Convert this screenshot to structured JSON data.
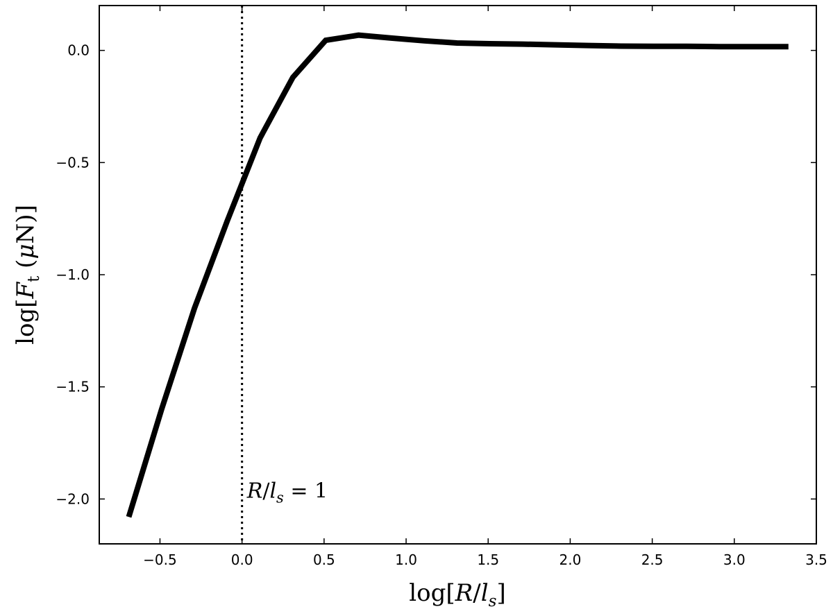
{
  "chart_data": {
    "type": "line",
    "xlabel": {
      "pre": "log[",
      "var": "R",
      "mid": "/",
      "var2": "l",
      "sub": "s",
      "post": "]"
    },
    "ylabel": {
      "pre": "log[",
      "var": "F",
      "sub": "t",
      "mid": " (",
      "mu": "μ",
      "unit": "N",
      "post": ")]"
    },
    "xlim": [
      -0.87,
      3.5
    ],
    "ylim": [
      -2.2,
      0.2
    ],
    "xticks": [
      -0.5,
      0.0,
      0.5,
      1.0,
      1.5,
      2.0,
      2.5,
      3.0,
      3.5
    ],
    "xtick_labels": [
      "−0.5",
      "0.0",
      "0.5",
      "1.0",
      "1.5",
      "2.0",
      "2.5",
      "3.0",
      "3.5"
    ],
    "yticks": [
      0.0,
      -0.5,
      -1.0,
      -1.5,
      -2.0
    ],
    "ytick_labels": [
      "0.0",
      "−0.5",
      "−1.0",
      "−1.5",
      "−2.0"
    ],
    "grid": false,
    "series": [
      {
        "x": [
          -0.69,
          -0.49,
          -0.29,
          -0.09,
          0.11,
          0.31,
          0.51,
          0.71,
          0.91,
          1.11,
          1.31,
          1.51,
          1.71,
          1.91,
          2.11,
          2.31,
          2.51,
          2.71,
          2.91,
          3.11,
          3.33
        ],
        "y": [
          -2.08,
          -1.6,
          -1.15,
          -0.76,
          -0.39,
          -0.12,
          0.045,
          0.068,
          0.055,
          0.043,
          0.033,
          0.03,
          0.028,
          0.025,
          0.022,
          0.019,
          0.018,
          0.018,
          0.017,
          0.017,
          0.017
        ],
        "color": "#000000"
      }
    ],
    "vline": {
      "x": 0.0,
      "style": "dotted",
      "color": "#000000"
    },
    "annotation": {
      "var": "R",
      "mid": "/",
      "var2": "l",
      "sub": "s",
      "eq": " = 1",
      "x": 0.03,
      "y": -1.96
    }
  }
}
